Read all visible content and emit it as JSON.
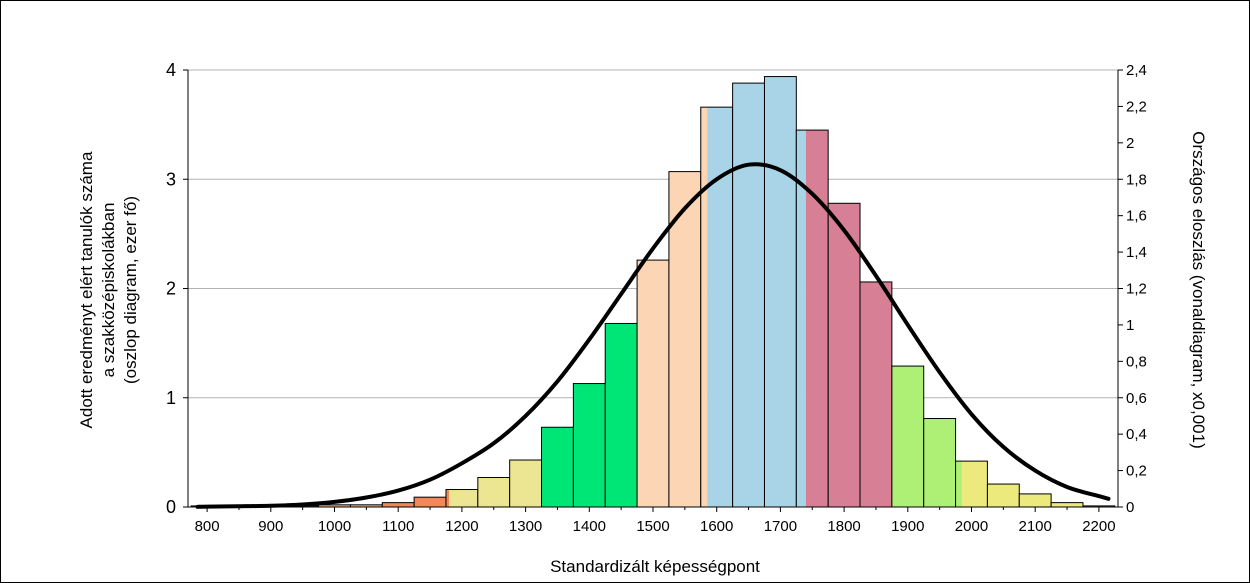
{
  "chart_data": {
    "type": "bar",
    "xlabel": "Standardizált képességpont",
    "ylabel_left_lines": [
      "Adott eredményt elért tanulók száma",
      "a szakközépiskolákban",
      "(oszlop diagram, ezer fő)"
    ],
    "ylabel_right": "Országos eloszlás (vonaldiagram, x0,001)",
    "xlim": [
      770,
      2230
    ],
    "ylim_left": [
      0,
      4
    ],
    "ylim_right": [
      0,
      2.4
    ],
    "x_ticks": [
      "800",
      "900",
      "1000",
      "1100",
      "1200",
      "1300",
      "1400",
      "1500",
      "1600",
      "1700",
      "1800",
      "1900",
      "2000",
      "2100",
      "2200"
    ],
    "x_tick_values": [
      800,
      900,
      1000,
      1100,
      1200,
      1300,
      1400,
      1500,
      1600,
      1700,
      1800,
      1900,
      2000,
      2100,
      2200
    ],
    "y_left_ticks": [
      "0",
      "1",
      "2",
      "3",
      "4"
    ],
    "y_left_tick_values": [
      0,
      1,
      2,
      3,
      4
    ],
    "y_right_ticks": [
      "0",
      "0,2",
      "0,4",
      "0,6",
      "0,8",
      "1",
      "1,2",
      "1,4",
      "1,6",
      "1,8",
      "2",
      "2,2",
      "2,4"
    ],
    "y_right_tick_values": [
      0,
      0.2,
      0.4,
      0.6,
      0.8,
      1.0,
      1.2,
      1.4,
      1.6,
      1.8,
      2.0,
      2.2,
      2.4
    ],
    "grid": true,
    "bar_width": 50,
    "bars": [
      {
        "x": 800,
        "value": 0.01,
        "color": "#f4b183"
      },
      {
        "x": 850,
        "value": 0.01,
        "color": "#f4b183"
      },
      {
        "x": 900,
        "value": 0.01,
        "color": "#f4b183"
      },
      {
        "x": 950,
        "value": 0.01,
        "color": "#f4b183"
      },
      {
        "x": 1000,
        "value": 0.02,
        "color": "#f4b183"
      },
      {
        "x": 1050,
        "value": 0.02,
        "color": "#f4b183"
      },
      {
        "x": 1100,
        "value": 0.04,
        "color": "#f4865a"
      },
      {
        "x": 1150,
        "value": 0.09,
        "color": "#f4865a"
      },
      {
        "x": 1200,
        "value": 0.16,
        "color": "#f4865a",
        "split": 1180,
        "color2": "#ece692"
      },
      {
        "x": 1250,
        "value": 0.27,
        "color": "#ece692"
      },
      {
        "x": 1300,
        "value": 0.43,
        "color": "#ece692"
      },
      {
        "x": 1350,
        "value": 0.73,
        "color": "#00e676"
      },
      {
        "x": 1400,
        "value": 1.13,
        "color": "#00e676"
      },
      {
        "x": 1450,
        "value": 1.68,
        "color": "#00e676"
      },
      {
        "x": 1500,
        "value": 2.26,
        "color": "#fcd5b4"
      },
      {
        "x": 1550,
        "value": 3.07,
        "color": "#fcd5b4"
      },
      {
        "x": 1600,
        "value": 3.66,
        "color": "#fcd5b4",
        "split": 1585,
        "color2": "#a9d3e6"
      },
      {
        "x": 1650,
        "value": 3.88,
        "color": "#a9d3e6"
      },
      {
        "x": 1700,
        "value": 3.94,
        "color": "#a9d3e6"
      },
      {
        "x": 1750,
        "value": 3.45,
        "color": "#a9d3e6",
        "split": 1740,
        "color2": "#d77f94"
      },
      {
        "x": 1800,
        "value": 2.78,
        "color": "#d77f94"
      },
      {
        "x": 1850,
        "value": 2.06,
        "color": "#d77f94"
      },
      {
        "x": 1900,
        "value": 1.29,
        "color": "#aeef76"
      },
      {
        "x": 1950,
        "value": 0.81,
        "color": "#aeef76"
      },
      {
        "x": 2000,
        "value": 0.42,
        "color": "#aeef76",
        "split": 1985,
        "color2": "#ece97d"
      },
      {
        "x": 2050,
        "value": 0.21,
        "color": "#ece97d"
      },
      {
        "x": 2100,
        "value": 0.12,
        "color": "#ece97d"
      },
      {
        "x": 2150,
        "value": 0.04,
        "color": "#ece97d"
      },
      {
        "x": 2200,
        "value": 0.01,
        "color": "#ece97d"
      }
    ],
    "line": {
      "axis": "right",
      "color": "#000000",
      "x": [
        785,
        800,
        850,
        900,
        950,
        1000,
        1050,
        1100,
        1150,
        1200,
        1250,
        1300,
        1350,
        1400,
        1450,
        1500,
        1550,
        1600,
        1650,
        1700,
        1750,
        1800,
        1850,
        1900,
        1950,
        2000,
        2050,
        2100,
        2150,
        2200,
        2215
      ],
      "y": [
        0.001,
        0.002,
        0.004,
        0.007,
        0.014,
        0.028,
        0.052,
        0.09,
        0.15,
        0.24,
        0.35,
        0.5,
        0.69,
        0.92,
        1.17,
        1.42,
        1.64,
        1.8,
        1.88,
        1.85,
        1.72,
        1.52,
        1.27,
        1.0,
        0.74,
        0.51,
        0.33,
        0.2,
        0.11,
        0.06,
        0.045
      ]
    }
  }
}
